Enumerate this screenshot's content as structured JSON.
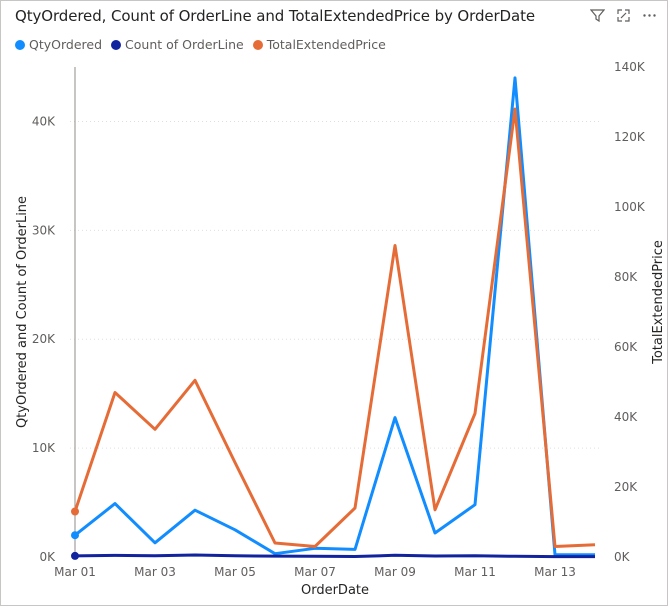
{
  "visual": {
    "title": "QtyOrdered, Count of OrderLine and TotalExtendedPrice by OrderDate",
    "icons": [
      "filter-icon",
      "focus-mode-icon",
      "more-options-icon"
    ]
  },
  "legend": [
    {
      "name": "QtyOrdered",
      "color": "#118DFF"
    },
    {
      "name": "Count of OrderLine",
      "color": "#12239E"
    },
    {
      "name": "TotalExtendedPrice",
      "color": "#E66C37"
    }
  ],
  "chart_data": {
    "type": "line",
    "title": "QtyOrdered, Count of OrderLine and TotalExtendedPrice by OrderDate",
    "xlabel": "OrderDate",
    "ylabel": "QtyOrdered and Count of OrderLine",
    "y2label": "TotalExtendedPrice",
    "x": [
      "Mar 01",
      "Mar 02",
      "Mar 03",
      "Mar 04",
      "Mar 05",
      "Mar 06",
      "Mar 07",
      "Mar 08",
      "Mar 09",
      "Mar 10",
      "Mar 11",
      "Mar 12",
      "Mar 13",
      "Mar 14"
    ],
    "x_tick_labels": [
      "Mar 01",
      "Mar 03",
      "Mar 05",
      "Mar 07",
      "Mar 09",
      "Mar 11",
      "Mar 13"
    ],
    "ylim": [
      0,
      45000
    ],
    "y_ticks": [
      0,
      10000,
      20000,
      30000,
      40000
    ],
    "y_tick_labels": [
      "0K",
      "10K",
      "20K",
      "30K",
      "40K"
    ],
    "y2lim": [
      0,
      140000
    ],
    "y2_ticks": [
      0,
      20000,
      40000,
      60000,
      80000,
      100000,
      120000,
      140000
    ],
    "y2_tick_labels": [
      "0K",
      "20K",
      "40K",
      "60K",
      "80K",
      "100K",
      "120K",
      "140K"
    ],
    "grid": true,
    "legend_position": "top-left",
    "series": [
      {
        "name": "QtyOrdered",
        "axis": "left",
        "color": "#118DFF",
        "values": [
          2000,
          4900,
          1300,
          4300,
          2500,
          300,
          800,
          700,
          12800,
          2200,
          4800,
          44000,
          200,
          200
        ]
      },
      {
        "name": "Count of OrderLine",
        "axis": "left",
        "color": "#12239E",
        "values": [
          100,
          150,
          120,
          180,
          110,
          80,
          60,
          50,
          160,
          90,
          120,
          60,
          40,
          40
        ]
      },
      {
        "name": "TotalExtendedPrice",
        "axis": "right",
        "color": "#E66C37",
        "values": [
          13000,
          47000,
          36500,
          50500,
          27000,
          4000,
          3000,
          14000,
          89000,
          13500,
          41000,
          128000,
          3000,
          3500
        ]
      }
    ]
  }
}
